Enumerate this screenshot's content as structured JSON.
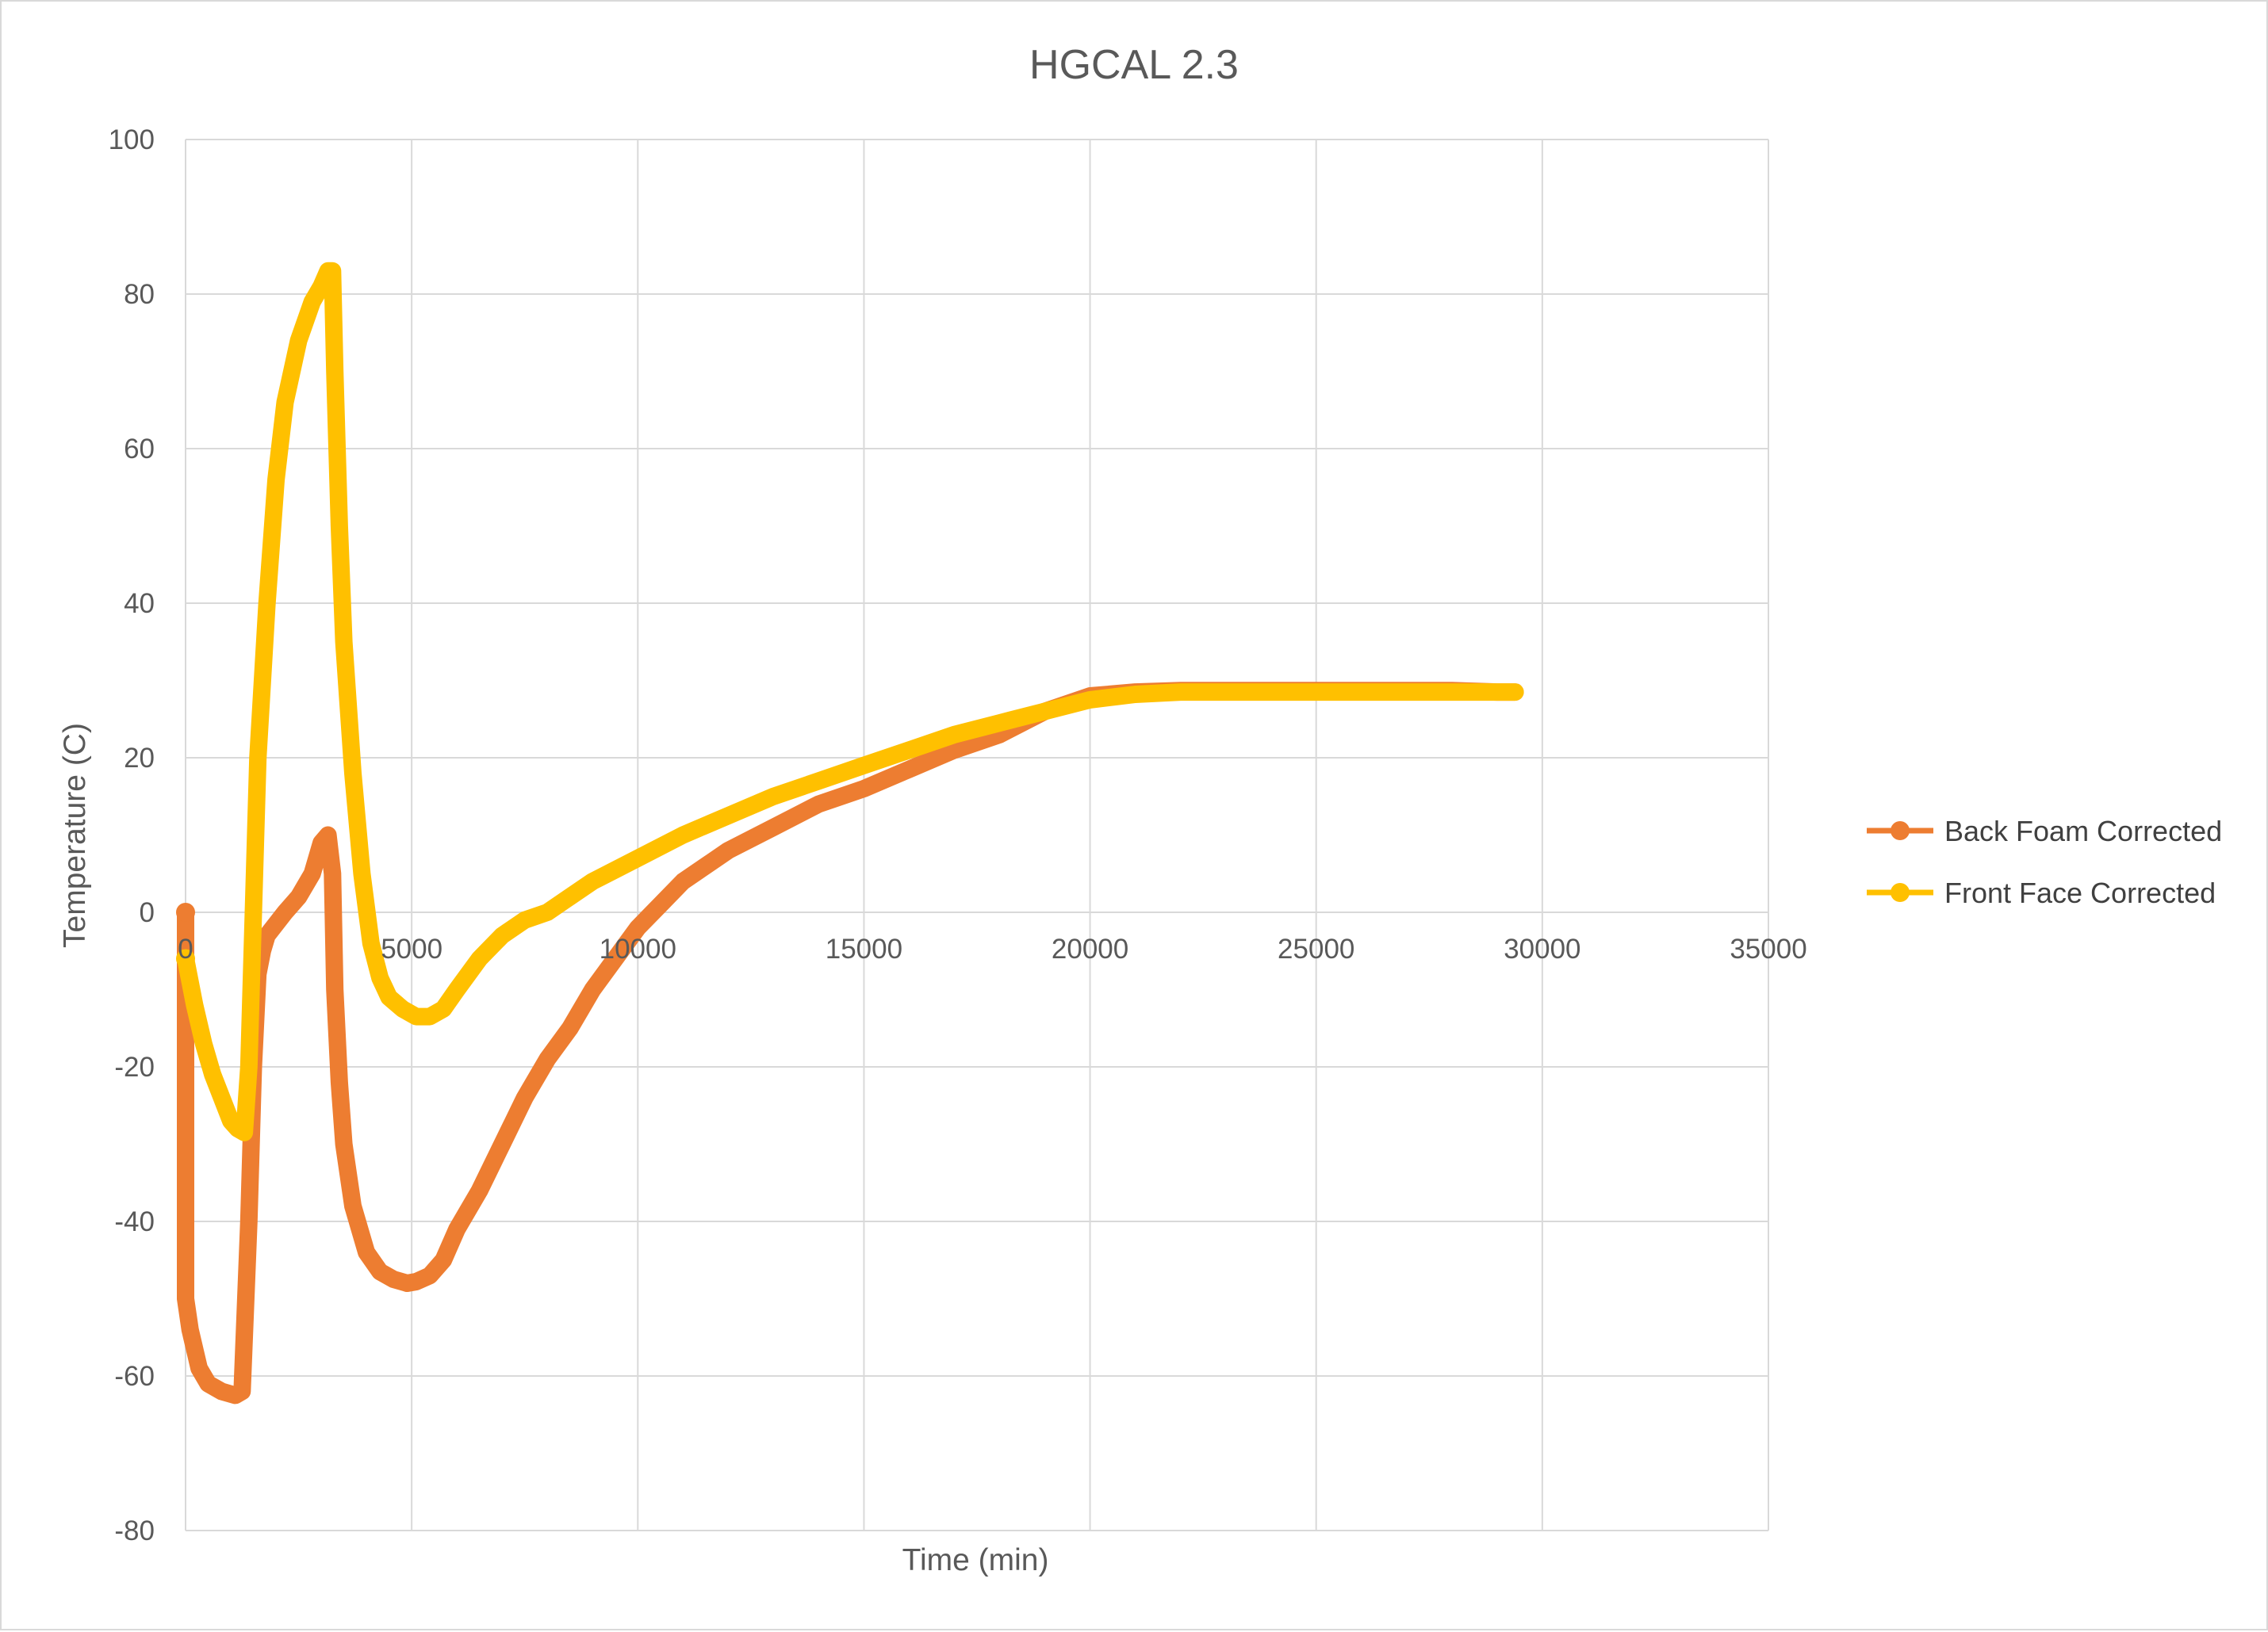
{
  "chart_data": {
    "type": "line",
    "title": "HGCAL 2.3",
    "xlabel": "Time (min)",
    "ylabel": "Temperature (C)",
    "xlim": [
      0,
      35000
    ],
    "ylim": [
      -80,
      100
    ],
    "xticks": [
      0,
      5000,
      10000,
      15000,
      20000,
      25000,
      30000,
      35000
    ],
    "yticks": [
      -80,
      -60,
      -40,
      -20,
      0,
      20,
      40,
      60,
      80,
      100
    ],
    "xtick_labels": [
      "0",
      "5000",
      "10000",
      "15000",
      "20000",
      "25000",
      "30000",
      "35000"
    ],
    "ytick_labels": [
      "-80",
      "-60",
      "-40",
      "-20",
      "0",
      "20",
      "40",
      "60",
      "80",
      "100"
    ],
    "grid": true,
    "legend_position": "right",
    "series": [
      {
        "name": "Back Foam Corrected",
        "color": "#ED7D31",
        "x": [
          0,
          0,
          100,
          300,
          500,
          800,
          1100,
          1250,
          1400,
          1500,
          1600,
          1700,
          1800,
          2000,
          2200,
          2500,
          2800,
          3000,
          3150,
          3250,
          3300,
          3400,
          3500,
          3700,
          4000,
          4300,
          4600,
          4900,
          5100,
          5400,
          5700,
          6000,
          6500,
          7000,
          7500,
          8000,
          8500,
          9000,
          9500,
          10000,
          10500,
          11000,
          11500,
          12000,
          13000,
          14000,
          15000,
          16000,
          17000,
          18000,
          19000,
          20000,
          21000,
          22000,
          23000,
          24000,
          25000,
          26000,
          27000,
          28000,
          29000,
          29400
        ],
        "y": [
          0,
          -50,
          -54,
          -59,
          -61,
          -62,
          -62.5,
          -62,
          -40,
          -20,
          -8,
          -5,
          -3,
          -1.5,
          0,
          2,
          5,
          9,
          10,
          5,
          -10,
          -22,
          -30,
          -38,
          -44,
          -46.5,
          -47.5,
          -48,
          -47.8,
          -47,
          -45,
          -41,
          -36,
          -30,
          -24,
          -19,
          -15,
          -10,
          -6,
          -2,
          1,
          4,
          6,
          8,
          11,
          14,
          16,
          18.5,
          21,
          23,
          26,
          28,
          28.5,
          28.7,
          28.7,
          28.7,
          28.7,
          28.7,
          28.7,
          28.7,
          28.5,
          28.5
        ]
      },
      {
        "name": "Front Face Corrected",
        "color": "#FFC000",
        "x": [
          0,
          200,
          400,
          600,
          800,
          1000,
          1150,
          1300,
          1400,
          1500,
          1600,
          1800,
          2000,
          2200,
          2500,
          2800,
          3000,
          3150,
          3250,
          3300,
          3400,
          3500,
          3700,
          3900,
          4100,
          4300,
          4500,
          4800,
          5100,
          5400,
          5700,
          6000,
          6500,
          7000,
          7500,
          8000,
          8500,
          9000,
          9500,
          10000,
          11000,
          12000,
          13000,
          14000,
          15000,
          16000,
          17000,
          18000,
          19000,
          20000,
          21000,
          22000,
          23000,
          24000,
          25000,
          26000,
          27000,
          28000,
          29000,
          29400
        ],
        "y": [
          -6,
          -12,
          -17,
          -21,
          -24,
          -27,
          -28,
          -28.5,
          -20,
          0,
          20,
          40,
          56,
          66,
          74,
          79,
          81,
          83,
          83,
          70,
          50,
          35,
          18,
          5,
          -4,
          -8.5,
          -11,
          -12.5,
          -13.5,
          -13.5,
          -12.5,
          -10,
          -6,
          -3,
          -1,
          0,
          2,
          4,
          5.5,
          7,
          10,
          12.5,
          15,
          17,
          19,
          21,
          23,
          24.5,
          26,
          27.5,
          28.2,
          28.5,
          28.5,
          28.5,
          28.5,
          28.5,
          28.5,
          28.5,
          28.5,
          28.5
        ]
      }
    ]
  }
}
